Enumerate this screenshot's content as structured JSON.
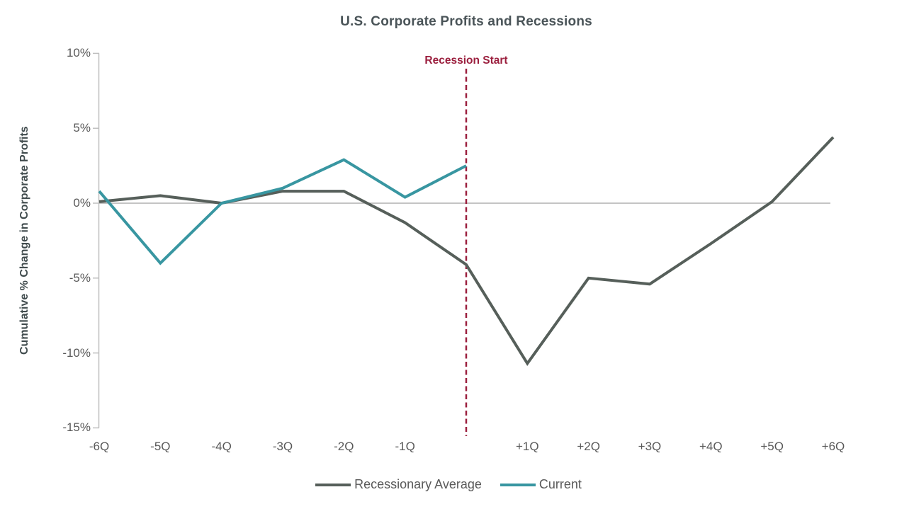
{
  "chart": {
    "title": "U.S. Corporate Profits and Recessions",
    "y_axis_title": "Cumulative % Change in Corporate Profits",
    "annotation_label": "Recession Start"
  },
  "legend": [
    {
      "label": "Recessionary Average",
      "color": "#565f5a"
    },
    {
      "label": "Current",
      "color": "#3896a1"
    }
  ],
  "colors": {
    "recessionary_average_line": "#565f5a",
    "current_line": "#3896a1",
    "recession_start_line": "#9b1f3e",
    "axis_line": "#bfbfbf",
    "zero_line": "#b1b1b1",
    "tick_label": "#595959",
    "title_text": "#4a5458"
  },
  "chart_data": {
    "type": "line",
    "title": "U.S. Corporate Profits and Recessions",
    "xlabel": "",
    "ylabel": "Cumulative % Change in Corporate Profits",
    "categories": [
      "-6Q",
      "-5Q",
      "-4Q",
      "-3Q",
      "-2Q",
      "-1Q",
      "",
      "+1Q",
      "+2Q",
      "+3Q",
      "+4Q",
      "+5Q",
      "+6Q"
    ],
    "series": [
      {
        "name": "Recessionary Average",
        "color": "#565f5a",
        "values": [
          0.1,
          0.5,
          0.0,
          0.8,
          0.8,
          -1.3,
          -4.1,
          -10.7,
          -5.0,
          -5.4,
          -2.7,
          0.1,
          4.4
        ]
      },
      {
        "name": "Current",
        "color": "#3896a1",
        "values": [
          0.8,
          -4.0,
          0.0,
          1.0,
          2.9,
          0.4,
          2.5,
          null,
          null,
          null,
          null,
          null,
          null
        ]
      }
    ],
    "y_ticks": [
      {
        "label": "10%",
        "value": 10
      },
      {
        "label": "5%",
        "value": 5
      },
      {
        "label": "0%",
        "value": 0
      },
      {
        "label": "-5%",
        "value": -5
      },
      {
        "label": "-10%",
        "value": -10
      },
      {
        "label": "-15%",
        "value": -15
      }
    ],
    "ylim": [
      -15,
      10
    ],
    "grid": false,
    "zero_line": true,
    "annotation": {
      "label": "Recession Start",
      "x_index": 6,
      "style": "dashed-vertical",
      "color": "#9b1f3e"
    },
    "legend_position": "bottom"
  }
}
